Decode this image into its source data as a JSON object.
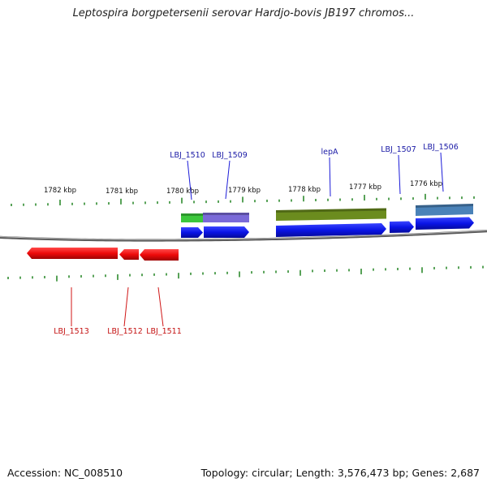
{
  "title": "Leptospira borgpetersenii serovar Hardjo-bovis JB197 chromos...",
  "footer": {
    "accession": "Accession: NC_008510",
    "topology": "Topology: circular; Length: 3,576,473 bp; Genes: 2,687"
  },
  "colors": {
    "backbone": "#7a7a7a",
    "tick": "#2e8b2e",
    "gene_forward": "#0a14e6",
    "gene_reverse": "#ee0a0a",
    "label_forward": "#1a1aa6",
    "label_reverse": "#c41212",
    "scale_text": "#111111"
  },
  "scale_labels": [
    "1782 kbp",
    "1781 kbp",
    "1780 kbp",
    "1779 kbp",
    "1778 kbp",
    "1777 kbp",
    "1776 kbp"
  ],
  "genes_forward": [
    "LBJ_1510",
    "LBJ_1509",
    "lepA",
    "LBJ_1507",
    "LBJ_1506"
  ],
  "genes_reverse": [
    "LBJ_1513",
    "LBJ_1512",
    "LBJ_1511"
  ],
  "feature_colors": [
    "#3cc83c",
    "#7a6ad8",
    "#6b8c1e",
    "#4a82b8"
  ]
}
